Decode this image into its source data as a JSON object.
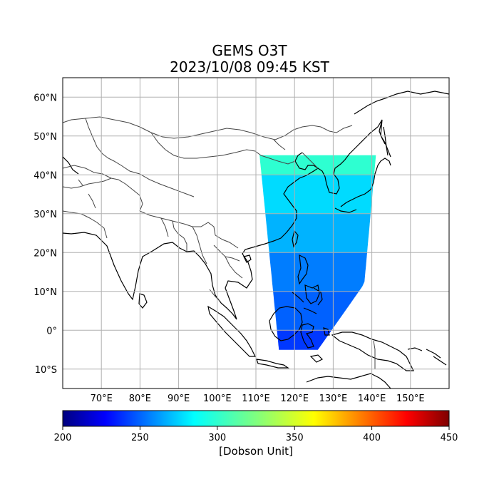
{
  "title": {
    "line1": "GEMS O3T",
    "line2": "2023/10/08 09:45 KST"
  },
  "map": {
    "lon_range": [
      60,
      160
    ],
    "lat_range": [
      -15,
      65
    ],
    "lat_ticks": [
      {
        "value": 60,
        "label": "60°N"
      },
      {
        "value": 50,
        "label": "50°N"
      },
      {
        "value": 40,
        "label": "40°N"
      },
      {
        "value": 30,
        "label": "30°N"
      },
      {
        "value": 20,
        "label": "20°N"
      },
      {
        "value": 10,
        "label": "10°N"
      },
      {
        "value": 0,
        "label": "0°"
      },
      {
        "value": -10,
        "label": "10°S"
      }
    ],
    "lon_ticks": [
      {
        "value": 70,
        "label": "70°E"
      },
      {
        "value": 80,
        "label": "80°E"
      },
      {
        "value": 90,
        "label": "90°E"
      },
      {
        "value": 100,
        "label": "100°E"
      },
      {
        "value": 110,
        "label": "110°E"
      },
      {
        "value": 120,
        "label": "120°E"
      },
      {
        "value": 130,
        "label": "130°E"
      },
      {
        "value": 140,
        "label": "140°E"
      },
      {
        "value": 150,
        "label": "150°E"
      }
    ],
    "gridlines": true,
    "coastline_color": "#000000",
    "border_color": "#444444"
  },
  "colorbar": {
    "min": 200,
    "max": 450,
    "ticks": [
      {
        "value": 200,
        "label": "200"
      },
      {
        "value": 250,
        "label": "250"
      },
      {
        "value": 300,
        "label": "300"
      },
      {
        "value": 350,
        "label": "350"
      },
      {
        "value": 400,
        "label": "400"
      },
      {
        "value": 450,
        "label": "450"
      }
    ],
    "label": "[Dobson Unit]",
    "colormap": "jet"
  },
  "chart_data": {
    "type": "heatmap",
    "title": "GEMS O3T 2023/10/08 09:45 KST",
    "xlabel": "",
    "ylabel": "",
    "xlim": [
      60,
      160
    ],
    "ylim": [
      -15,
      65
    ],
    "value_unit": "[Dobson Unit]",
    "value_range": [
      200,
      450
    ],
    "swath_regions": [
      {
        "lat": [
          40,
          45
        ],
        "value": 305
      },
      {
        "lat": [
          30,
          40
        ],
        "value": 285
      },
      {
        "lat": [
          20,
          30
        ],
        "value": 275
      },
      {
        "lat": [
          10,
          20
        ],
        "value": 262
      },
      {
        "lat": [
          0,
          10
        ],
        "value": 255
      },
      {
        "lat": [
          -5,
          0
        ],
        "value": 245
      }
    ]
  }
}
